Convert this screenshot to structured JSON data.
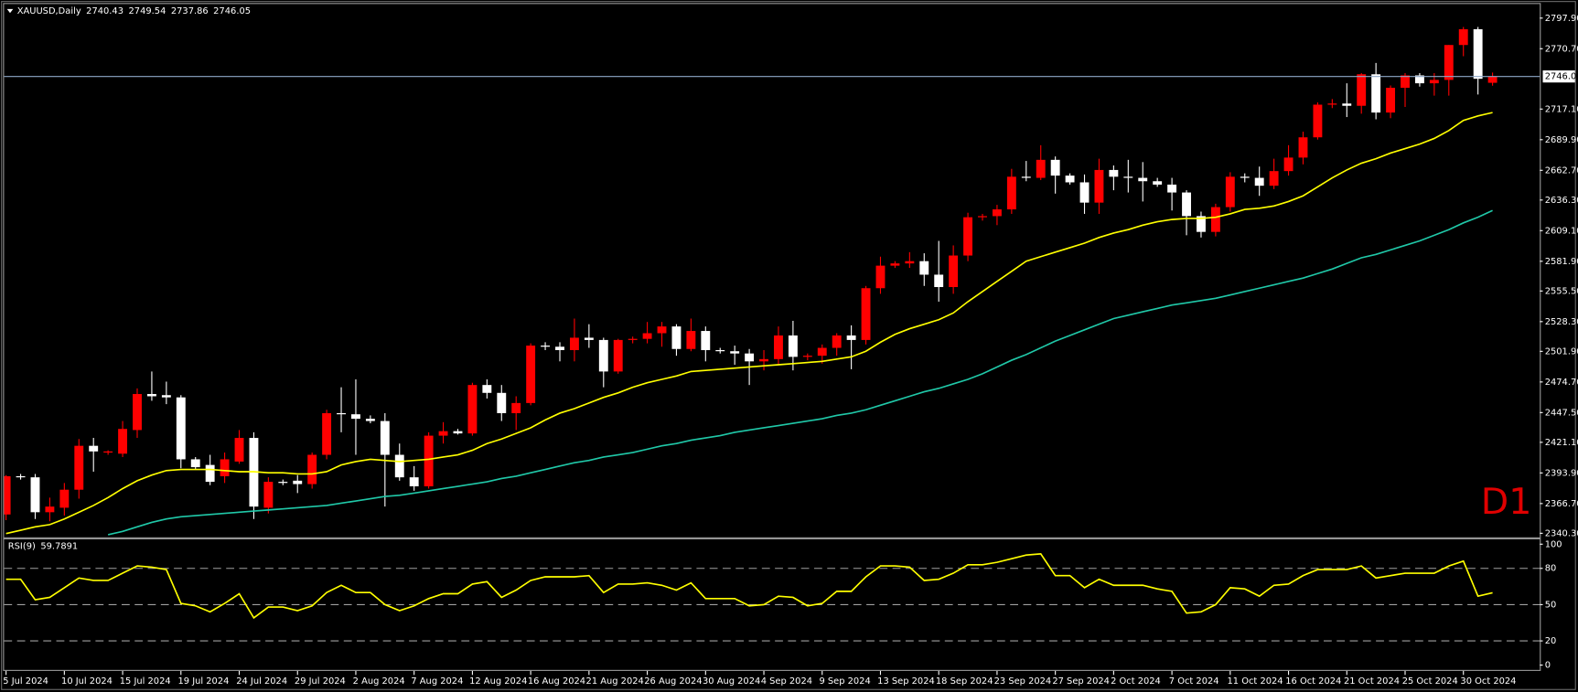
{
  "chart_data": [
    {
      "type": "candlestick",
      "title": "XAUUSD,Daily",
      "annotation": "D1",
      "annotation_color": "#e00000",
      "up_color": "#ff0000",
      "down_color": "#ffffff",
      "last_price_line_color": "#8fa8c8",
      "categories": [
        "5 Jul 2024",
        null,
        null,
        null,
        "10 Jul 2024",
        null,
        null,
        null,
        "15 Jul 2024",
        null,
        null,
        null,
        "19 Jul 2024",
        null,
        null,
        null,
        "24 Jul 2024",
        null,
        null,
        null,
        "29 Jul 2024",
        null,
        null,
        null,
        "2 Aug 2024",
        null,
        null,
        null,
        "7 Aug 2024",
        null,
        null,
        null,
        "12 Aug 2024",
        null,
        null,
        null,
        "16 Aug 2024",
        null,
        null,
        null,
        "21 Aug 2024",
        null,
        null,
        null,
        "26 Aug 2024",
        null,
        null,
        null,
        "30 Aug 2024",
        null,
        null,
        null,
        "4 Sep 2024",
        null,
        null,
        null,
        "9 Sep 2024",
        null,
        null,
        null,
        "13 Sep 2024",
        null,
        null,
        null,
        "18 Sep 2024",
        null,
        null,
        null,
        "23 Sep 2024",
        null,
        null,
        null,
        "27 Sep 2024",
        null,
        null,
        null,
        "2 Oct 2024",
        null,
        null,
        null,
        "7 Oct 2024",
        null,
        null,
        null,
        "11 Oct 2024",
        null,
        null,
        null,
        "16 Oct 2024",
        null,
        null,
        null,
        "21 Oct 2024",
        null,
        null,
        null,
        "25 Oct 2024",
        null,
        null,
        null,
        "30 Oct 2024",
        null,
        null
      ],
      "open": [
        2357,
        2391,
        2390,
        2359,
        2363,
        2379,
        2418,
        2412,
        2411,
        2432,
        2464,
        2463,
        2461,
        2406,
        2401,
        2391,
        2404,
        2425,
        2363,
        2386,
        2387,
        2384,
        2410,
        2447,
        2446,
        2442,
        2440,
        2410,
        2390,
        2382,
        2427,
        2431,
        2429,
        2472,
        2465,
        2447,
        2456,
        2507,
        2506,
        2503,
        2514,
        2512,
        2484,
        2512,
        2513,
        2518,
        2524,
        2504,
        2520,
        2503,
        2502,
        2500,
        2493,
        2495,
        2516,
        2497,
        2498,
        2505,
        2516,
        2512,
        2558,
        2578,
        2580,
        2582,
        2570,
        2559,
        2587,
        2621,
        2622,
        2628,
        2657,
        2656,
        2672,
        2658,
        2652,
        2634,
        2663,
        2657,
        2656,
        2653,
        2650,
        2643,
        2622,
        2608,
        2630,
        2657,
        2656,
        2649,
        2662,
        2674,
        2692,
        2721,
        2722,
        2720,
        2748,
        2714,
        2736,
        2747,
        2740,
        2743,
        2774,
        2788,
        2740.43
      ],
      "high": [
        2392,
        2393,
        2393,
        2372,
        2385,
        2424,
        2425,
        2414,
        2440,
        2469,
        2484,
        2475,
        2463,
        2408,
        2410,
        2412,
        2432,
        2430,
        2390,
        2388,
        2392,
        2412,
        2450,
        2470,
        2477,
        2445,
        2447,
        2420,
        2400,
        2430,
        2439,
        2433,
        2474,
        2477,
        2472,
        2462,
        2509,
        2510,
        2510,
        2531,
        2526,
        2514,
        2513,
        2515,
        2528,
        2528,
        2526,
        2531,
        2524,
        2505,
        2507,
        2504,
        2503,
        2524,
        2529,
        2500,
        2508,
        2518,
        2525,
        2560,
        2586,
        2582,
        2590,
        2589,
        2600,
        2596,
        2625,
        2624,
        2632,
        2664,
        2671,
        2685,
        2675,
        2660,
        2659,
        2673,
        2667,
        2672,
        2670,
        2656,
        2656,
        2645,
        2626,
        2633,
        2661,
        2660,
        2666,
        2673,
        2685,
        2697,
        2723,
        2726,
        2740,
        2749,
        2758,
        2738,
        2749,
        2749,
        2749,
        2774,
        2790,
        2790,
        2749.54
      ],
      "low": [
        2352,
        2388,
        2353,
        2351,
        2356,
        2371,
        2395,
        2410,
        2408,
        2425,
        2458,
        2455,
        2398,
        2397,
        2383,
        2385,
        2402,
        2353,
        2358,
        2383,
        2376,
        2380,
        2406,
        2430,
        2410,
        2438,
        2364,
        2387,
        2378,
        2380,
        2420,
        2428,
        2427,
        2460,
        2440,
        2432,
        2454,
        2503,
        2493,
        2493,
        2505,
        2470,
        2482,
        2509,
        2509,
        2506,
        2498,
        2502,
        2493,
        2500,
        2490,
        2472,
        2485,
        2490,
        2485,
        2494,
        2491,
        2498,
        2486,
        2508,
        2553,
        2576,
        2576,
        2560,
        2546,
        2553,
        2582,
        2618,
        2614,
        2624,
        2653,
        2654,
        2642,
        2650,
        2624,
        2624,
        2645,
        2643,
        2635,
        2648,
        2627,
        2605,
        2603,
        2604,
        2626,
        2652,
        2640,
        2646,
        2658,
        2668,
        2690,
        2718,
        2710,
        2713,
        2708,
        2709,
        2719,
        2737,
        2729,
        2729,
        2764,
        2730,
        2737.86
      ],
      "close": [
        2391,
        2390,
        2359,
        2364,
        2379,
        2418,
        2413,
        2413,
        2433,
        2464,
        2462,
        2461,
        2406,
        2399,
        2386,
        2406,
        2425,
        2364,
        2386,
        2385,
        2384,
        2410,
        2447,
        2446,
        2442,
        2440,
        2410,
        2390,
        2382,
        2427,
        2431,
        2429,
        2472,
        2465,
        2447,
        2456,
        2507,
        2506,
        2503,
        2514,
        2512,
        2484,
        2512,
        2513,
        2518,
        2524,
        2504,
        2520,
        2503,
        2502,
        2500,
        2493,
        2495,
        2516,
        2497,
        2498,
        2505,
        2516,
        2512,
        2558,
        2578,
        2580,
        2582,
        2570,
        2559,
        2587,
        2621,
        2622,
        2628,
        2657,
        2656,
        2672,
        2658,
        2652,
        2634,
        2663,
        2657,
        2656,
        2653,
        2650,
        2643,
        2622,
        2608,
        2630,
        2657,
        2656,
        2649,
        2662,
        2674,
        2692,
        2721,
        2722,
        2720,
        2748,
        2714,
        2736,
        2747,
        2740,
        2743,
        2774,
        2788,
        2744,
        2746.05
      ],
      "series": [
        {
          "color": "#ffff00",
          "values": [
            2340,
            2343,
            2346,
            2348,
            2353,
            2359,
            2365,
            2372,
            2380,
            2387,
            2392,
            2396,
            2397,
            2397,
            2397,
            2396,
            2395,
            2395,
            2394,
            2394,
            2393,
            2393,
            2395,
            2401,
            2404,
            2406,
            2405,
            2404,
            2405,
            2406,
            2408,
            2410,
            2414,
            2420,
            2424,
            2429,
            2434,
            2441,
            2447,
            2451,
            2456,
            2461,
            2465,
            2470,
            2474,
            2477,
            2480,
            2484,
            2485,
            2486,
            2487,
            2488,
            2489,
            2490,
            2491,
            2492,
            2493,
            2495,
            2497,
            2502,
            2510,
            2517,
            2522,
            2526,
            2530,
            2536,
            2546,
            2555,
            2564,
            2573,
            2582,
            2586,
            2590,
            2594,
            2598,
            2603,
            2607,
            2610,
            2614,
            2617,
            2619,
            2620,
            2620,
            2621,
            2624,
            2628,
            2629,
            2631,
            2635,
            2640,
            2648,
            2656,
            2663,
            2669,
            2673,
            2678,
            2682,
            2686,
            2691,
            2698,
            2707,
            2711,
            2714
          ]
        },
        {
          "color": "#20c8a8",
          "values": [
            null,
            null,
            null,
            null,
            null,
            null,
            null,
            2339,
            2342,
            2346,
            2350,
            2353,
            2355,
            2356,
            2357,
            2358,
            2359,
            2360,
            2361,
            2362,
            2363,
            2364,
            2365,
            2367,
            2369,
            2371,
            2373,
            2374,
            2376,
            2378,
            2380,
            2382,
            2384,
            2386,
            2389,
            2391,
            2394,
            2397,
            2400,
            2403,
            2405,
            2408,
            2410,
            2412,
            2415,
            2418,
            2420,
            2423,
            2425,
            2427,
            2430,
            2432,
            2434,
            2436,
            2438,
            2440,
            2442,
            2445,
            2447,
            2450,
            2454,
            2458,
            2462,
            2466,
            2469,
            2473,
            2477,
            2482,
            2488,
            2494,
            2499,
            2505,
            2511,
            2516,
            2521,
            2526,
            2531,
            2534,
            2537,
            2540,
            2543,
            2545,
            2547,
            2549,
            2552,
            2555,
            2558,
            2561,
            2564,
            2567,
            2571,
            2575,
            2580,
            2585,
            2588,
            2592,
            2596,
            2600,
            2605,
            2610,
            2616,
            2621,
            2627
          ]
        }
      ],
      "ylim": [
        2336.7,
        2810.4
      ],
      "yticks": [
        {
          "value": 2797.9,
          "label": "2797.90"
        },
        {
          "value": 2770.7,
          "label": "2770.70"
        },
        {
          "value": 2717.1,
          "label": "2717.10"
        },
        {
          "value": 2689.9,
          "label": "2689.90"
        },
        {
          "value": 2662.7,
          "label": "2662.70"
        },
        {
          "value": 2636.3,
          "label": "2636.30"
        },
        {
          "value": 2609.1,
          "label": "2609.10"
        },
        {
          "value": 2581.9,
          "label": "2581.90"
        },
        {
          "value": 2555.5,
          "label": "2555.50"
        },
        {
          "value": 2528.3,
          "label": "2528.30"
        },
        {
          "value": 2501.9,
          "label": "2501.90"
        },
        {
          "value": 2474.7,
          "label": "2474.70"
        },
        {
          "value": 2447.5,
          "label": "2447.50"
        },
        {
          "value": 2421.1,
          "label": "2421.10"
        },
        {
          "value": 2393.9,
          "label": "2393.90"
        },
        {
          "value": 2366.7,
          "label": "2366.70"
        },
        {
          "value": 2340.3,
          "label": "2340.30"
        }
      ],
      "grid": false
    },
    {
      "type": "line",
      "title": "RSI(9)",
      "series": [
        {
          "color": "#ffff00",
          "values": [
            71,
            71,
            54,
            56,
            64,
            72,
            70,
            70,
            76,
            82,
            81,
            79,
            51,
            49,
            44,
            51,
            59,
            39,
            48,
            48,
            45,
            49,
            60,
            66,
            60,
            60,
            50,
            45,
            49,
            55,
            59,
            59,
            67,
            69,
            56,
            62,
            70,
            73,
            73,
            73,
            74,
            60,
            67,
            67,
            68,
            66,
            62,
            68,
            55,
            55,
            55,
            49,
            50,
            57,
            56,
            49,
            51,
            61,
            61,
            73,
            82,
            82,
            81,
            70,
            71,
            76,
            83,
            83,
            85,
            88,
            91,
            92,
            74,
            74,
            64,
            71,
            66,
            66,
            66,
            63,
            61,
            43,
            44,
            50,
            64,
            63,
            57,
            66,
            67,
            74,
            79,
            79,
            79,
            82,
            72,
            74,
            76,
            76,
            76,
            82,
            86,
            57,
            59.7891
          ]
        }
      ],
      "levels": [
        20,
        50,
        80
      ],
      "level_color": "#a0a0a0",
      "ylim": [
        -4,
        104
      ],
      "yticks": [
        0,
        20,
        50,
        80,
        100
      ],
      "grid": false
    }
  ]
}
